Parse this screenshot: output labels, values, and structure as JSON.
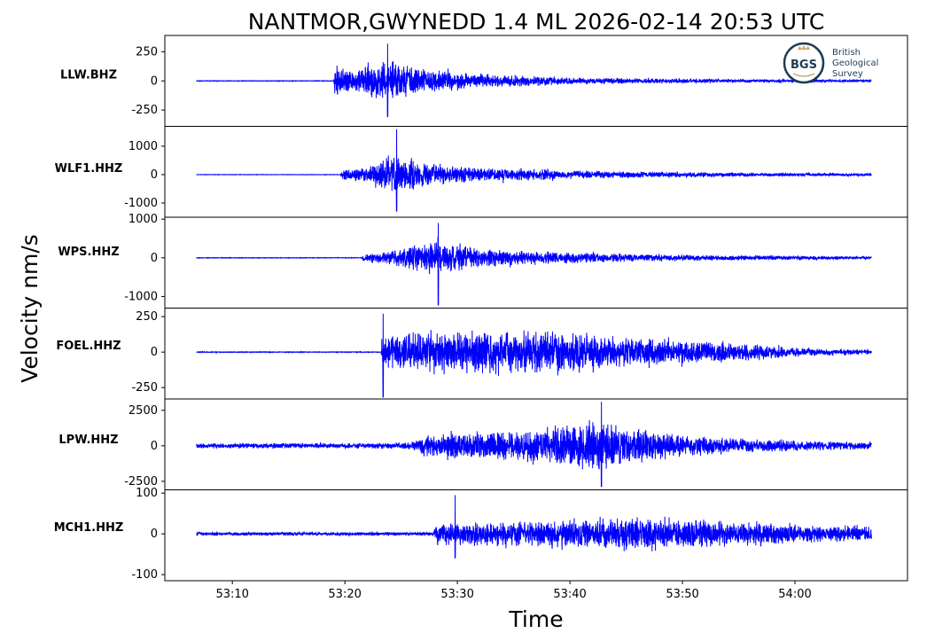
{
  "chart_data": {
    "type": "line",
    "title": "NANTMOR,GWYNEDD 1.4 ML   2026-02-14 20:53 UTC",
    "ylabel": "Velocity nm/s",
    "xlabel": "Time",
    "x_range": [
      "53:06.8",
      "54:06.8"
    ],
    "x_axis_range": [
      "53:04",
      "54:10"
    ],
    "x_ticks": [
      "53:10",
      "53:20",
      "53:30",
      "53:40",
      "53:50",
      "54:00"
    ],
    "series_color": "#0000ff",
    "grid": false,
    "legend": "none",
    "panels": [
      {
        "station": "LLW.BHZ",
        "ylim": [
          -390,
          390
        ],
        "y_ticks": [
          "250",
          "0",
          "-250"
        ],
        "y_tick_values": [
          250,
          0,
          -250
        ],
        "noise": 3,
        "envelope": [
          [
            0,
            0
          ],
          [
            12.2,
            0
          ],
          [
            12.3,
            150
          ],
          [
            14,
            120
          ],
          [
            16.5,
            190
          ],
          [
            17.2,
            200
          ],
          [
            20,
            130
          ],
          [
            25,
            70
          ],
          [
            35,
            30
          ],
          [
            50,
            15
          ],
          [
            60,
            12
          ]
        ],
        "peak": {
          "t": 17.0,
          "max": 320,
          "min": -310
        }
      },
      {
        "station": "WLF1.HHZ",
        "ylim": [
          -1500,
          1700
        ],
        "y_ticks": [
          "1000",
          "0",
          "-1000"
        ],
        "y_tick_values": [
          1000,
          0,
          -1000
        ],
        "noise": 8,
        "envelope": [
          [
            0,
            0
          ],
          [
            12.8,
            0
          ],
          [
            12.9,
            250
          ],
          [
            15,
            300
          ],
          [
            17.5,
            800
          ],
          [
            20,
            500
          ],
          [
            25,
            300
          ],
          [
            35,
            150
          ],
          [
            50,
            70
          ],
          [
            60,
            50
          ]
        ],
        "peak": {
          "t": 17.8,
          "max": 1600,
          "min": -1300
        }
      },
      {
        "station": "WPS.HHZ",
        "ylim": [
          -1300,
          1050
        ],
        "y_ticks": [
          "1000",
          "0",
          "-1000"
        ],
        "y_tick_values": [
          1000,
          0,
          -1000
        ],
        "noise": 8,
        "envelope": [
          [
            0,
            0
          ],
          [
            14.7,
            0
          ],
          [
            14.8,
            100
          ],
          [
            17,
            200
          ],
          [
            19.5,
            400
          ],
          [
            21.5,
            500
          ],
          [
            25,
            300
          ],
          [
            30,
            200
          ],
          [
            40,
            100
          ],
          [
            60,
            40
          ]
        ],
        "peak": {
          "t": 21.5,
          "max": 900,
          "min": -1230
        }
      },
      {
        "station": "FOEL.HHZ",
        "ylim": [
          -330,
          310
        ],
        "y_ticks": [
          "250",
          "0",
          "-250"
        ],
        "y_tick_values": [
          250,
          0,
          -250
        ],
        "noise": 3,
        "envelope": [
          [
            0,
            0
          ],
          [
            16.4,
            3
          ],
          [
            16.5,
            120
          ],
          [
            20,
            170
          ],
          [
            25,
            170
          ],
          [
            30,
            180
          ],
          [
            35,
            140
          ],
          [
            40,
            110
          ],
          [
            45,
            90
          ],
          [
            50,
            60
          ],
          [
            55,
            30
          ],
          [
            60,
            20
          ]
        ],
        "peak": {
          "t": 16.6,
          "max": 270,
          "min": -320
        }
      },
      {
        "station": "LPW.HHZ",
        "ylim": [
          -3100,
          3300
        ],
        "y_ticks": [
          "2500",
          "0",
          "-2500"
        ],
        "y_tick_values": [
          2500,
          0,
          -2500
        ],
        "noise": 200,
        "envelope": [
          [
            0,
            200
          ],
          [
            15,
            220
          ],
          [
            19,
            300
          ],
          [
            20.5,
            900
          ],
          [
            25,
            1100
          ],
          [
            30,
            1300
          ],
          [
            33,
            1800
          ],
          [
            35.5,
            2200
          ],
          [
            38,
            1600
          ],
          [
            42,
            1000
          ],
          [
            48,
            600
          ],
          [
            55,
            400
          ],
          [
            60,
            300
          ]
        ],
        "peak": {
          "t": 36.0,
          "max": 3100,
          "min": -2900
        }
      },
      {
        "station": "MCH1.HHZ",
        "ylim": [
          -115,
          108
        ],
        "y_ticks": [
          "100",
          "0",
          "-100"
        ],
        "y_tick_values": [
          100,
          0,
          -100
        ],
        "noise": 5,
        "envelope": [
          [
            0,
            5
          ],
          [
            21,
            5
          ],
          [
            21.2,
            30
          ],
          [
            25,
            35
          ],
          [
            30,
            37
          ],
          [
            35,
            42
          ],
          [
            40,
            45
          ],
          [
            45,
            40
          ],
          [
            50,
            32
          ],
          [
            55,
            25
          ],
          [
            60,
            20
          ]
        ],
        "peak": {
          "t": 23.0,
          "max": 95,
          "min": -60
        }
      }
    ]
  },
  "logo": {
    "emblem_text": "BGS",
    "name_lines": [
      "British",
      "Geological",
      "Survey"
    ],
    "primary_color": "#1d3b57",
    "accent_color": "#c8a96a"
  }
}
